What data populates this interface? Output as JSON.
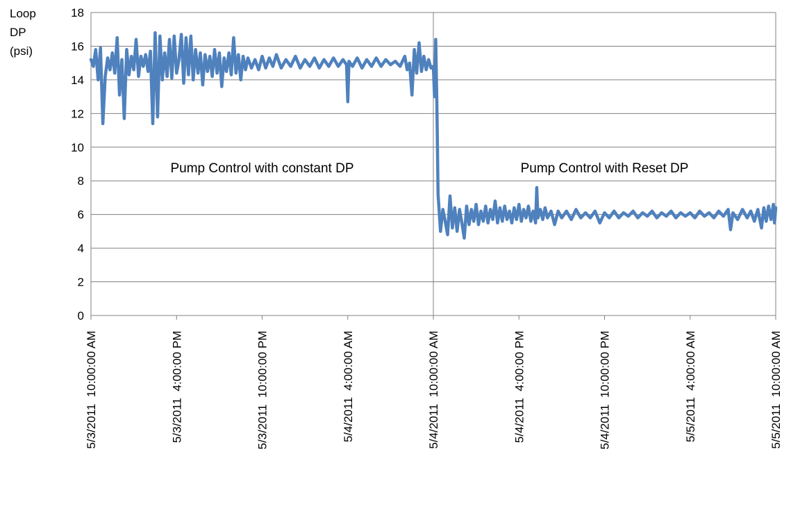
{
  "chart_data": {
    "type": "line",
    "title": "",
    "xlabel": "",
    "ylabel_lines": [
      "Loop",
      "DP",
      "(psi)"
    ],
    "ylim": [
      0,
      18
    ],
    "yticks": [
      0,
      2,
      4,
      6,
      8,
      10,
      12,
      14,
      16,
      18
    ],
    "grid": true,
    "legend": "none",
    "xlim": [
      "5/3/2011 10:00:00 AM",
      "5/5/2011 10:00:00 AM"
    ],
    "xtick_labels": [
      "5/3/2011  10:00:00 AM",
      "5/3/2011  4:00:00 PM",
      "5/3/2011  10:00:00 PM",
      "5/4/2011  4:00:00 AM",
      "5/4/2011  10:00:00 AM",
      "5/4/2011  4:00:00 PM",
      "5/4/2011  10:00:00 PM",
      "5/5/2011  4:00:00 AM",
      "5/5/2011  10:00:00 AM"
    ],
    "divider_at": "5/4/2011 10:00:00 AM",
    "annotations": [
      {
        "text": "Pump Control with constant DP",
        "x": "5/3/2011 10:00:00 PM",
        "y": 8.5
      },
      {
        "text": "Pump Control with Reset DP",
        "x": "5/4/2011 10:00:00 PM",
        "y": 8.5
      }
    ],
    "series": [
      {
        "color": "#4f81bd",
        "points": [
          [
            "5/3/2011 10:00:00 AM",
            15.2
          ],
          [
            "5/3/2011 10:10:00 AM",
            14.8
          ],
          [
            "5/3/2011 10:20:00 AM",
            15.8
          ],
          [
            "5/3/2011 10:30:00 AM",
            14.0
          ],
          [
            "5/3/2011 10:40:00 AM",
            15.9
          ],
          [
            "5/3/2011 10:50:00 AM",
            11.4
          ],
          [
            "5/3/2011 11:00:00 AM",
            14.2
          ],
          [
            "5/3/2011 11:10:00 AM",
            15.3
          ],
          [
            "5/3/2011 11:20:00 AM",
            14.6
          ],
          [
            "5/3/2011 11:30:00 AM",
            15.6
          ],
          [
            "5/3/2011 11:40:00 AM",
            14.4
          ],
          [
            "5/3/2011 11:50:00 AM",
            16.5
          ],
          [
            "5/3/2011 12:00:00 PM",
            13.1
          ],
          [
            "5/3/2011 12:10:00 PM",
            15.2
          ],
          [
            "5/3/2011 12:20:00 PM",
            11.7
          ],
          [
            "5/3/2011 12:30:00 PM",
            15.8
          ],
          [
            "5/3/2011 12:40:00 PM",
            14.3
          ],
          [
            "5/3/2011 12:50:00 PM",
            15.4
          ],
          [
            "5/3/2011 1:00:00 PM",
            14.6
          ],
          [
            "5/3/2011 1:10:00 PM",
            16.4
          ],
          [
            "5/3/2011 1:20:00 PM",
            14.2
          ],
          [
            "5/3/2011 1:30:00 PM",
            15.4
          ],
          [
            "5/3/2011 1:40:00 PM",
            14.8
          ],
          [
            "5/3/2011 1:50:00 PM",
            15.5
          ],
          [
            "5/3/2011 2:00:00 PM",
            14.5
          ],
          [
            "5/3/2011 2:10:00 PM",
            15.7
          ],
          [
            "5/3/2011 2:20:00 PM",
            11.4
          ],
          [
            "5/3/2011 2:30:00 PM",
            16.8
          ],
          [
            "5/3/2011 2:40:00 PM",
            11.8
          ],
          [
            "5/3/2011 2:50:00 PM",
            16.6
          ],
          [
            "5/3/2011 3:00:00 PM",
            14.0
          ],
          [
            "5/3/2011 3:10:00 PM",
            15.6
          ],
          [
            "5/3/2011 3:20:00 PM",
            14.2
          ],
          [
            "5/3/2011 3:30:00 PM",
            16.4
          ],
          [
            "5/3/2011 3:40:00 PM",
            14.1
          ],
          [
            "5/3/2011 3:50:00 PM",
            16.6
          ],
          [
            "5/3/2011 4:00:00 PM",
            14.4
          ],
          [
            "5/3/2011 4:10:00 PM",
            15.2
          ],
          [
            "5/3/2011 4:20:00 PM",
            16.7
          ],
          [
            "5/3/2011 4:30:00 PM",
            13.8
          ],
          [
            "5/3/2011 4:40:00 PM",
            16.5
          ],
          [
            "5/3/2011 4:50:00 PM",
            14.3
          ],
          [
            "5/3/2011 5:00:00 PM",
            16.6
          ],
          [
            "5/3/2011 5:10:00 PM",
            14.0
          ],
          [
            "5/3/2011 5:20:00 PM",
            15.8
          ],
          [
            "5/3/2011 5:30:00 PM",
            14.4
          ],
          [
            "5/3/2011 5:40:00 PM",
            15.6
          ],
          [
            "5/3/2011 5:50:00 PM",
            13.7
          ],
          [
            "5/3/2011 6:00:00 PM",
            15.5
          ],
          [
            "5/3/2011 6:10:00 PM",
            14.5
          ],
          [
            "5/3/2011 6:20:00 PM",
            15.4
          ],
          [
            "5/3/2011 6:30:00 PM",
            14.2
          ],
          [
            "5/3/2011 6:40:00 PM",
            15.8
          ],
          [
            "5/3/2011 6:50:00 PM",
            14.4
          ],
          [
            "5/3/2011 7:00:00 PM",
            15.6
          ],
          [
            "5/3/2011 7:10:00 PM",
            13.6
          ],
          [
            "5/3/2011 7:20:00 PM",
            15.3
          ],
          [
            "5/3/2011 7:30:00 PM",
            14.5
          ],
          [
            "5/3/2011 7:40:00 PM",
            15.6
          ],
          [
            "5/3/2011 7:50:00 PM",
            14.3
          ],
          [
            "5/3/2011 8:00:00 PM",
            16.5
          ],
          [
            "5/3/2011 8:10:00 PM",
            14.4
          ],
          [
            "5/3/2011 8:20:00 PM",
            15.5
          ],
          [
            "5/3/2011 8:30:00 PM",
            14.0
          ],
          [
            "5/3/2011 8:40:00 PM",
            15.4
          ],
          [
            "5/3/2011 8:50:00 PM",
            14.6
          ],
          [
            "5/3/2011 9:00:00 PM",
            15.3
          ],
          [
            "5/3/2011 9:15:00 PM",
            14.7
          ],
          [
            "5/3/2011 9:30:00 PM",
            15.2
          ],
          [
            "5/3/2011 9:45:00 PM",
            14.6
          ],
          [
            "5/3/2011 10:00:00 PM",
            15.4
          ],
          [
            "5/3/2011 10:15:00 PM",
            14.7
          ],
          [
            "5/3/2011 10:30:00 PM",
            15.3
          ],
          [
            "5/3/2011 10:45:00 PM",
            14.8
          ],
          [
            "5/3/2011 11:00:00 PM",
            15.5
          ],
          [
            "5/3/2011 11:20:00 PM",
            14.7
          ],
          [
            "5/3/2011 11:40:00 PM",
            15.2
          ],
          [
            "5/4/2011 12:00:00 AM",
            14.8
          ],
          [
            "5/4/2011 12:20:00 AM",
            15.4
          ],
          [
            "5/4/2011 12:40:00 AM",
            14.7
          ],
          [
            "5/4/2011 1:00:00 AM",
            15.2
          ],
          [
            "5/4/2011 1:20:00 AM",
            14.8
          ],
          [
            "5/4/2011 1:40:00 AM",
            15.3
          ],
          [
            "5/4/2011 2:00:00 AM",
            14.7
          ],
          [
            "5/4/2011 2:20:00 AM",
            15.2
          ],
          [
            "5/4/2011 2:40:00 AM",
            14.8
          ],
          [
            "5/4/2011 3:00:00 AM",
            15.3
          ],
          [
            "5/4/2011 3:20:00 AM",
            14.8
          ],
          [
            "5/4/2011 3:40:00 AM",
            15.2
          ],
          [
            "5/4/2011 3:55:00 AM",
            14.9
          ],
          [
            "5/4/2011 4:00:00 AM",
            12.7
          ],
          [
            "5/4/2011 4:05:00 AM",
            15.1
          ],
          [
            "5/4/2011 4:20:00 AM",
            14.8
          ],
          [
            "5/4/2011 4:40:00 AM",
            15.3
          ],
          [
            "5/4/2011 5:00:00 AM",
            14.7
          ],
          [
            "5/4/2011 5:20:00 AM",
            15.2
          ],
          [
            "5/4/2011 5:40:00 AM",
            14.8
          ],
          [
            "5/4/2011 6:00:00 AM",
            15.3
          ],
          [
            "5/4/2011 6:20:00 AM",
            14.8
          ],
          [
            "5/4/2011 6:40:00 AM",
            15.2
          ],
          [
            "5/4/2011 7:00:00 AM",
            14.9
          ],
          [
            "5/4/2011 7:20:00 AM",
            15.1
          ],
          [
            "5/4/2011 7:40:00 AM",
            14.8
          ],
          [
            "5/4/2011 8:00:00 AM",
            15.4
          ],
          [
            "5/4/2011 8:10:00 AM",
            14.6
          ],
          [
            "5/4/2011 8:20:00 AM",
            15.0
          ],
          [
            "5/4/2011 8:30:00 AM",
            13.1
          ],
          [
            "5/4/2011 8:40:00 AM",
            15.8
          ],
          [
            "5/4/2011 8:50:00 AM",
            14.4
          ],
          [
            "5/4/2011 9:00:00 AM",
            16.2
          ],
          [
            "5/4/2011 9:10:00 AM",
            14.5
          ],
          [
            "5/4/2011 9:20:00 AM",
            15.4
          ],
          [
            "5/4/2011 9:30:00 AM",
            14.6
          ],
          [
            "5/4/2011 9:40:00 AM",
            15.2
          ],
          [
            "5/4/2011 9:50:00 AM",
            14.7
          ],
          [
            "5/4/2011 10:00:00 AM",
            14.8
          ],
          [
            "5/4/2011 10:05:00 AM",
            13.0
          ],
          [
            "5/4/2011 10:10:00 AM",
            16.4
          ],
          [
            "5/4/2011 10:15:00 AM",
            12.5
          ],
          [
            "5/4/2011 10:20:00 AM",
            7.2
          ],
          [
            "5/4/2011 10:30:00 AM",
            5.0
          ],
          [
            "5/4/2011 10:40:00 AM",
            6.3
          ],
          [
            "5/4/2011 10:50:00 AM",
            5.6
          ],
          [
            "5/4/2011 11:00:00 AM",
            4.8
          ],
          [
            "5/4/2011 11:10:00 AM",
            7.1
          ],
          [
            "5/4/2011 11:20:00 AM",
            5.2
          ],
          [
            "5/4/2011 11:30:00 AM",
            6.4
          ],
          [
            "5/4/2011 11:40:00 AM",
            5.0
          ],
          [
            "5/4/2011 11:50:00 AM",
            6.3
          ],
          [
            "5/4/2011 12:00:00 PM",
            5.5
          ],
          [
            "5/4/2011 12:10:00 PM",
            4.6
          ],
          [
            "5/4/2011 12:20:00 PM",
            6.5
          ],
          [
            "5/4/2011 12:30:00 PM",
            5.4
          ],
          [
            "5/4/2011 12:40:00 PM",
            6.3
          ],
          [
            "5/4/2011 12:50:00 PM",
            5.6
          ],
          [
            "5/4/2011 1:00:00 PM",
            6.6
          ],
          [
            "5/4/2011 1:10:00 PM",
            5.4
          ],
          [
            "5/4/2011 1:20:00 PM",
            6.2
          ],
          [
            "5/4/2011 1:30:00 PM",
            5.6
          ],
          [
            "5/4/2011 1:40:00 PM",
            6.5
          ],
          [
            "5/4/2011 1:50:00 PM",
            5.5
          ],
          [
            "5/4/2011 2:00:00 PM",
            6.3
          ],
          [
            "5/4/2011 2:10:00 PM",
            5.7
          ],
          [
            "5/4/2011 2:20:00 PM",
            6.8
          ],
          [
            "5/4/2011 2:30:00 PM",
            5.5
          ],
          [
            "5/4/2011 2:40:00 PM",
            6.4
          ],
          [
            "5/4/2011 2:50:00 PM",
            5.6
          ],
          [
            "5/4/2011 3:00:00 PM",
            6.5
          ],
          [
            "5/4/2011 3:10:00 PM",
            5.7
          ],
          [
            "5/4/2011 3:20:00 PM",
            6.2
          ],
          [
            "5/4/2011 3:30:00 PM",
            5.5
          ],
          [
            "5/4/2011 3:40:00 PM",
            6.4
          ],
          [
            "5/4/2011 3:50:00 PM",
            5.7
          ],
          [
            "5/4/2011 4:00:00 PM",
            6.6
          ],
          [
            "5/4/2011 4:10:00 PM",
            5.6
          ],
          [
            "5/4/2011 4:20:00 PM",
            6.3
          ],
          [
            "5/4/2011 4:30:00 PM",
            5.8
          ],
          [
            "5/4/2011 4:40:00 PM",
            6.5
          ],
          [
            "5/4/2011 4:50:00 PM",
            5.6
          ],
          [
            "5/4/2011 5:00:00 PM",
            6.2
          ],
          [
            "5/4/2011 5:10:00 PM",
            5.5
          ],
          [
            "5/4/2011 5:15:00 PM",
            7.6
          ],
          [
            "5/4/2011 5:20:00 PM",
            5.8
          ],
          [
            "5/4/2011 5:30:00 PM",
            6.3
          ],
          [
            "5/4/2011 5:40:00 PM",
            5.7
          ],
          [
            "5/4/2011 5:50:00 PM",
            6.4
          ],
          [
            "5/4/2011 6:00:00 PM",
            5.8
          ],
          [
            "5/4/2011 6:15:00 PM",
            6.2
          ],
          [
            "5/4/2011 6:30:00 PM",
            5.4
          ],
          [
            "5/4/2011 6:45:00 PM",
            6.2
          ],
          [
            "5/4/2011 7:00:00 PM",
            5.8
          ],
          [
            "5/4/2011 7:20:00 PM",
            6.2
          ],
          [
            "5/4/2011 7:40:00 PM",
            5.7
          ],
          [
            "5/4/2011 8:00:00 PM",
            6.3
          ],
          [
            "5/4/2011 8:20:00 PM",
            5.8
          ],
          [
            "5/4/2011 8:40:00 PM",
            6.1
          ],
          [
            "5/4/2011 9:00:00 PM",
            5.8
          ],
          [
            "5/4/2011 9:20:00 PM",
            6.2
          ],
          [
            "5/4/2011 9:40:00 PM",
            5.5
          ],
          [
            "5/4/2011 10:00:00 PM",
            6.1
          ],
          [
            "5/4/2011 10:20:00 PM",
            5.8
          ],
          [
            "5/4/2011 10:40:00 PM",
            6.2
          ],
          [
            "5/4/2011 11:00:00 PM",
            5.8
          ],
          [
            "5/4/2011 11:20:00 PM",
            6.1
          ],
          [
            "5/4/2011 11:40:00 PM",
            5.9
          ],
          [
            "5/5/2011 12:00:00 AM",
            6.2
          ],
          [
            "5/5/2011 12:20:00 AM",
            5.8
          ],
          [
            "5/5/2011 12:40:00 AM",
            6.1
          ],
          [
            "5/5/2011 1:00:00 AM",
            5.9
          ],
          [
            "5/5/2011 1:20:00 AM",
            6.2
          ],
          [
            "5/5/2011 1:40:00 AM",
            5.8
          ],
          [
            "5/5/2011 2:00:00 AM",
            6.1
          ],
          [
            "5/5/2011 2:20:00 AM",
            5.9
          ],
          [
            "5/5/2011 2:40:00 AM",
            6.2
          ],
          [
            "5/5/2011 3:00:00 AM",
            5.8
          ],
          [
            "5/5/2011 3:20:00 AM",
            6.1
          ],
          [
            "5/5/2011 3:40:00 AM",
            5.9
          ],
          [
            "5/5/2011 4:00:00 AM",
            6.1
          ],
          [
            "5/5/2011 4:20:00 AM",
            5.8
          ],
          [
            "5/5/2011 4:40:00 AM",
            6.2
          ],
          [
            "5/5/2011 5:00:00 AM",
            5.9
          ],
          [
            "5/5/2011 5:20:00 AM",
            6.1
          ],
          [
            "5/5/2011 5:40:00 AM",
            5.8
          ],
          [
            "5/5/2011 6:00:00 AM",
            6.2
          ],
          [
            "5/5/2011 6:20:00 AM",
            5.9
          ],
          [
            "5/5/2011 6:40:00 AM",
            6.3
          ],
          [
            "5/5/2011 6:50:00 AM",
            5.1
          ],
          [
            "5/5/2011 7:00:00 AM",
            6.1
          ],
          [
            "5/5/2011 7:20:00 AM",
            5.7
          ],
          [
            "5/5/2011 7:40:00 AM",
            6.3
          ],
          [
            "5/5/2011 8:00:00 AM",
            5.8
          ],
          [
            "5/5/2011 8:15:00 AM",
            6.2
          ],
          [
            "5/5/2011 8:30:00 AM",
            5.6
          ],
          [
            "5/5/2011 8:45:00 AM",
            6.3
          ],
          [
            "5/5/2011 9:00:00 AM",
            5.2
          ],
          [
            "5/5/2011 9:10:00 AM",
            6.4
          ],
          [
            "5/5/2011 9:20:00 AM",
            5.6
          ],
          [
            "5/5/2011 9:30:00 AM",
            6.5
          ],
          [
            "5/5/2011 9:40:00 AM",
            5.7
          ],
          [
            "5/5/2011 9:50:00 AM",
            6.6
          ],
          [
            "5/5/2011 9:55:00 AM",
            5.5
          ],
          [
            "5/5/2011 10:00:00 AM",
            6.4
          ]
        ]
      }
    ]
  }
}
